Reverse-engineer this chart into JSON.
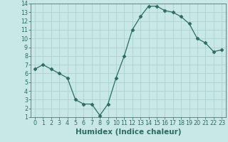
{
  "x": [
    0,
    1,
    2,
    3,
    4,
    5,
    6,
    7,
    8,
    9,
    10,
    11,
    12,
    13,
    14,
    15,
    16,
    17,
    18,
    19,
    20,
    21,
    22,
    23
  ],
  "y": [
    6.5,
    7.0,
    6.5,
    6.0,
    5.5,
    3.0,
    2.5,
    2.5,
    1.2,
    2.5,
    5.5,
    8.0,
    11.0,
    12.5,
    13.7,
    13.7,
    13.2,
    13.0,
    12.5,
    11.7,
    10.0,
    9.5,
    8.5,
    8.7
  ],
  "xlabel": "Humidex (Indice chaleur)",
  "xlim": [
    -0.5,
    23.5
  ],
  "ylim": [
    1,
    14
  ],
  "yticks": [
    1,
    2,
    3,
    4,
    5,
    6,
    7,
    8,
    9,
    10,
    11,
    12,
    13,
    14
  ],
  "xticks": [
    0,
    1,
    2,
    3,
    4,
    5,
    6,
    7,
    8,
    9,
    10,
    11,
    12,
    13,
    14,
    15,
    16,
    17,
    18,
    19,
    20,
    21,
    22,
    23
  ],
  "line_color": "#2e6b5e",
  "marker": "D",
  "marker_size": 2.5,
  "bg_color": "#c8e8e8",
  "grid_color": "#a8cece",
  "xlabel_color": "#2e6b5e",
  "tick_fontsize": 5.8,
  "xlabel_fontsize": 7.5
}
